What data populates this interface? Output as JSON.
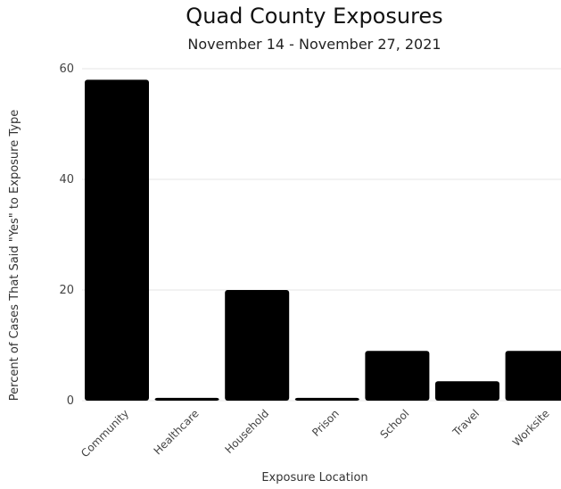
{
  "chart_data": {
    "type": "bar",
    "title": "Quad County Exposures",
    "subtitle": "November 14 - November 27, 2021",
    "xlabel": "Exposure Location",
    "ylabel": "Percent of Cases That Said \"Yes\" to Exposure Type",
    "categories": [
      "Community",
      "Healthcare",
      "Household",
      "Prison",
      "School",
      "Travel",
      "Worksite"
    ],
    "values": [
      58,
      0.5,
      20,
      0.5,
      9,
      3.5,
      9
    ],
    "ylim": [
      0,
      60
    ],
    "yticks": [
      0,
      20,
      40,
      60
    ],
    "grid": true,
    "bar_color": "#000000",
    "grid_color": "#e6e6e6"
  }
}
